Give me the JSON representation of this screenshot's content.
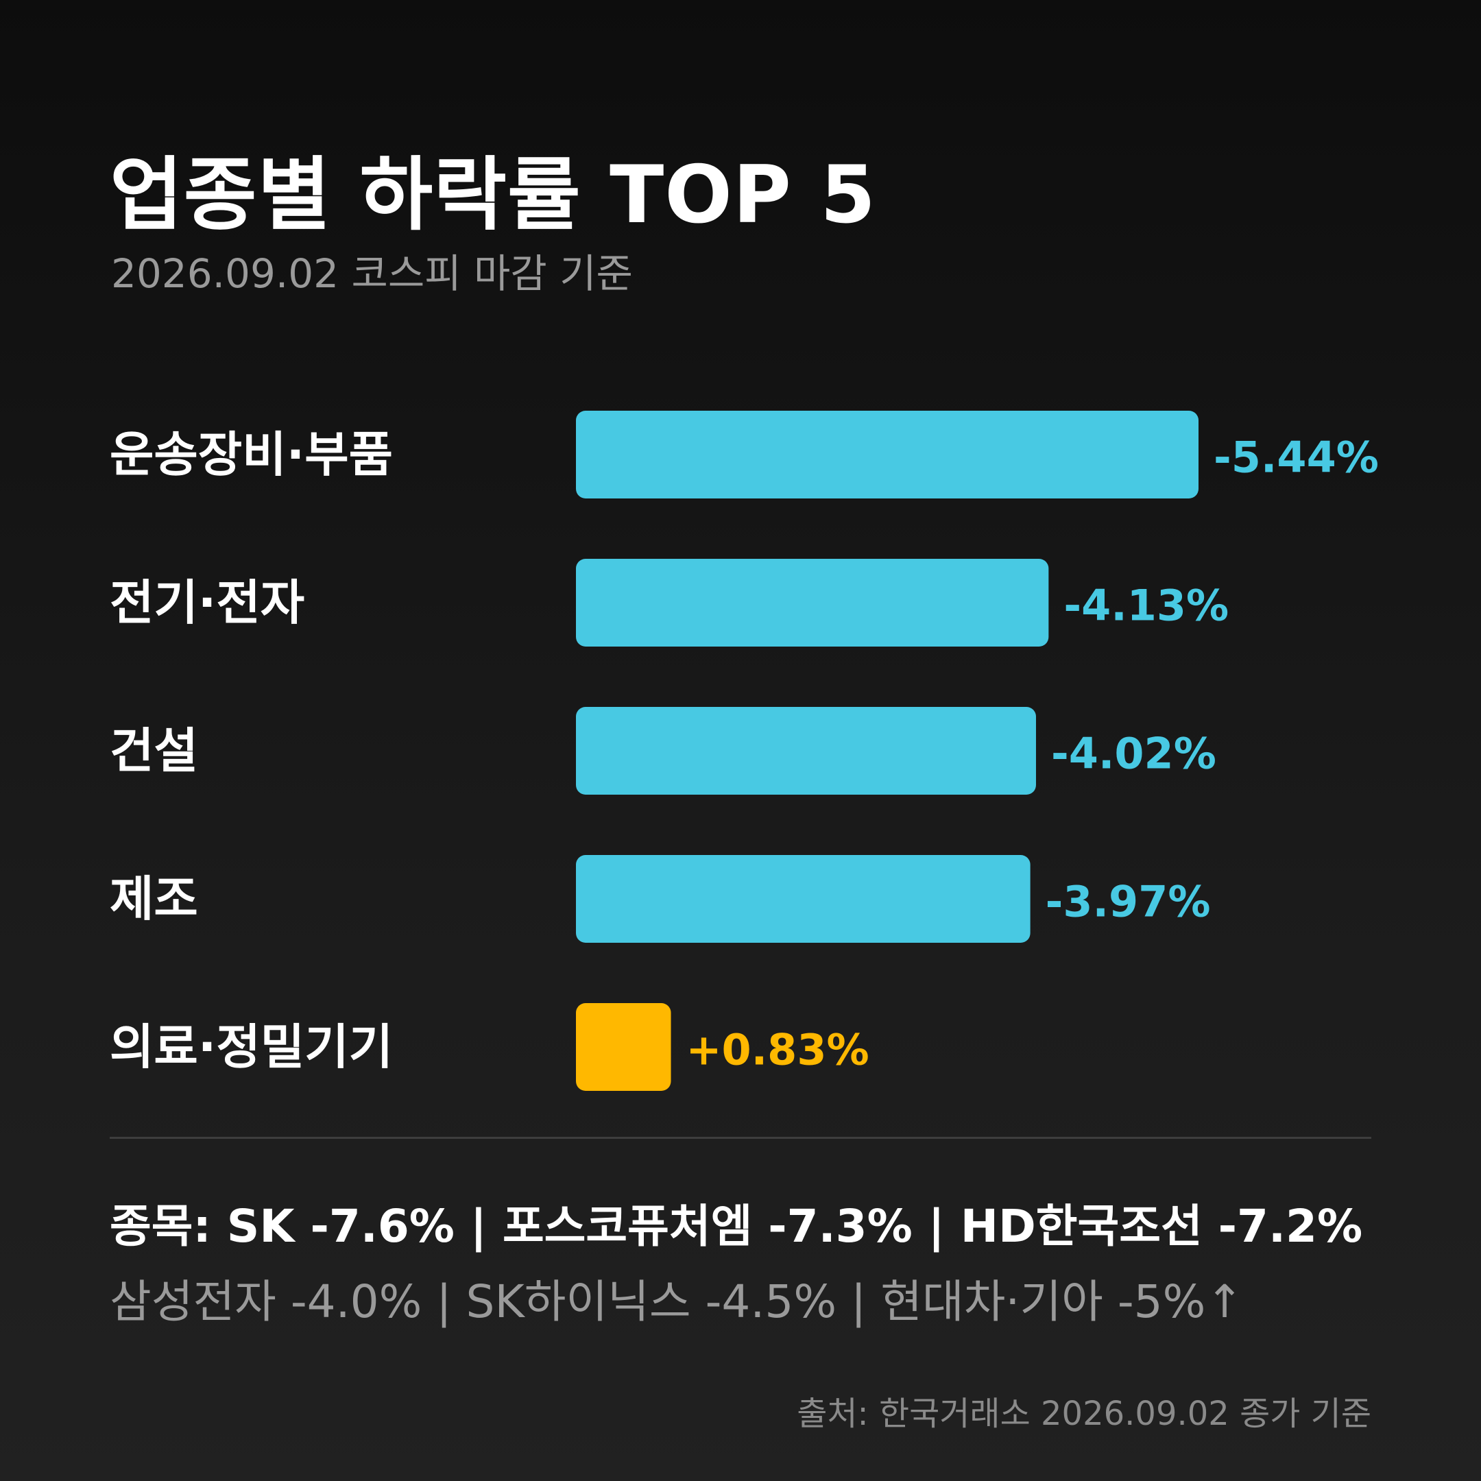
{
  "title": "업종별 하락률 TOP 5",
  "subtitle": "2026.09.02 코스피 마감 기준",
  "colors": {
    "negative": "#48c9e3",
    "positive": "#ffb800",
    "text": "#ffffff",
    "muted": "#9a9a9a"
  },
  "chart_data": {
    "type": "bar",
    "orientation": "horizontal",
    "title": "업종별 하락률 TOP 5",
    "subtitle": "2026.09.02 코스피 마감 기준",
    "categories": [
      "운송장비·부품",
      "전기·전자",
      "건설",
      "제조",
      "의료·정밀기기"
    ],
    "values": [
      -5.44,
      -4.13,
      -4.02,
      -3.97,
      0.83
    ],
    "value_labels": [
      "-5.44%",
      "-4.13%",
      "-4.02%",
      "-3.97%",
      "+0.83%"
    ],
    "unit": "%",
    "grid": false
  },
  "stocks_line1": "종목: SK -7.6% | 포스코퓨처엠 -7.3% | HD한국조선 -7.2%",
  "stocks_line2": "삼성전자 -4.0% | SK하이닉스 -4.5% | 현대차·기아 -5%↑",
  "source": "출처: 한국거래소 2026.09.02 종가 기준"
}
